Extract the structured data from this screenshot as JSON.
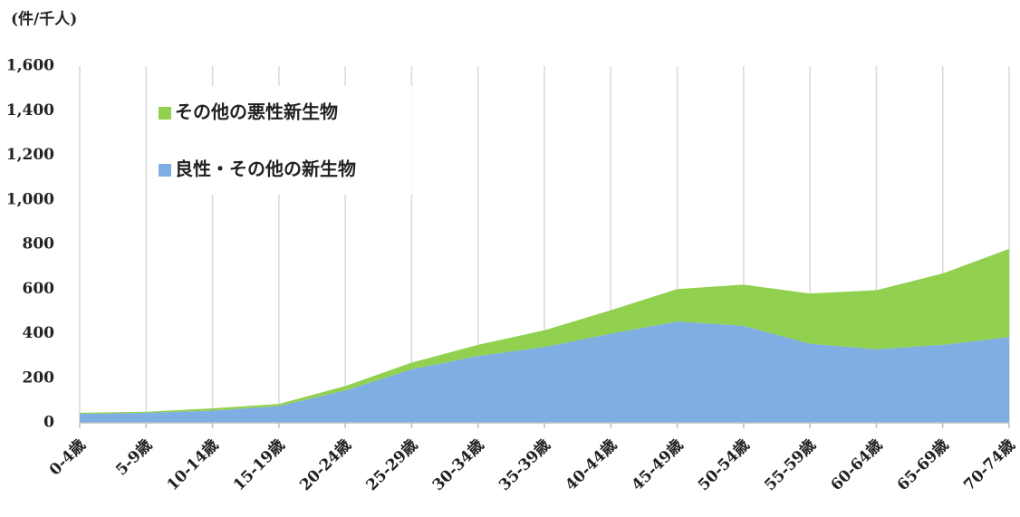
{
  "chart_data": {
    "type": "area",
    "stacked": true,
    "y_axis_label": "(件/千人)",
    "categories": [
      "0-4歳",
      "5-9歳",
      "10-14歳",
      "15-19歳",
      "20-24歳",
      "25-29歳",
      "30-34歳",
      "35-39歳",
      "40-44歳",
      "45-49歳",
      "50-54歳",
      "55-59歳",
      "60-64歳",
      "65-69歳",
      "70-74歳"
    ],
    "series": [
      {
        "name": "良性・その他の新生物",
        "color": "#7faee3",
        "values": [
          40,
          45,
          55,
          75,
          145,
          240,
          300,
          340,
          400,
          455,
          435,
          355,
          330,
          350,
          385
        ]
      },
      {
        "name": "その他の悪性新生物",
        "color": "#92d050",
        "values": [
          5,
          5,
          10,
          10,
          20,
          30,
          50,
          75,
          105,
          145,
          185,
          225,
          265,
          320,
          395
        ]
      }
    ],
    "ylim": [
      0,
      1600
    ],
    "yticks": [
      0,
      200,
      400,
      600,
      800,
      {
        "value": 1000,
        "label": "1,000"
      },
      {
        "value": 1200,
        "label": "1,200"
      },
      {
        "value": 1400,
        "label": "1,400"
      },
      {
        "value": 1600,
        "label": "1,600"
      }
    ],
    "grid": true,
    "legend": "upper left"
  }
}
